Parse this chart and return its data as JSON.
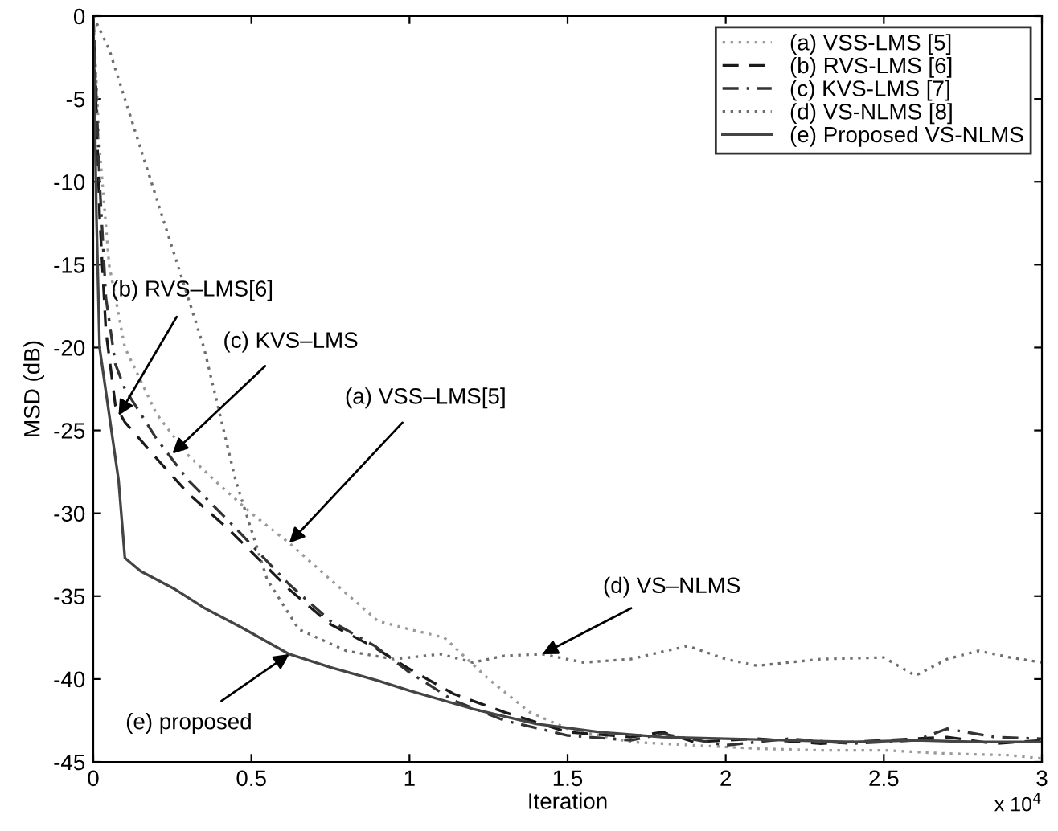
{
  "chart_data": {
    "type": "line",
    "xlabel": "Iteration",
    "ylabel": "MSD (dB)",
    "xlim": [
      0,
      3
    ],
    "ylim": [
      -45,
      0
    ],
    "xticks": [
      0,
      0.5,
      1,
      1.5,
      2,
      2.5,
      3
    ],
    "yticks": [
      -45,
      -40,
      -35,
      -30,
      -25,
      -20,
      -15,
      -10,
      -5,
      0
    ],
    "grid": false,
    "legend": "top right",
    "series": [
      {
        "name": "(a) VSS-LMS [5]",
        "color": "#9a9a9a",
        "line_style": "dotted",
        "x": [
          0,
          0.02,
          0.05,
          0.1,
          0.2,
          0.3,
          0.4,
          0.5,
          0.62,
          0.75,
          0.9,
          1.0,
          1.11,
          1.25,
          1.38,
          1.5,
          1.7,
          1.9,
          2.1,
          2.3,
          2.5,
          2.7,
          2.9,
          3.0
        ],
        "values": [
          0,
          -8,
          -15,
          -20,
          -24,
          -26.5,
          -28.3,
          -30,
          -31.8,
          -34,
          -36.5,
          -37,
          -37.5,
          -40,
          -42,
          -43,
          -43.8,
          -44,
          -44.2,
          -44.3,
          -44.3,
          -44.5,
          -44.6,
          -44.8
        ]
      },
      {
        "name": "(b) RVS-LMS [6]",
        "color": "#1a1a1a",
        "line_style": "dashed",
        "x": [
          0,
          0.02,
          0.04,
          0.07,
          0.1,
          0.21,
          0.3,
          0.43,
          0.52,
          0.62,
          0.75,
          0.89,
          1.0,
          1.14,
          1.3,
          1.5,
          1.7,
          1.8,
          1.9,
          2.1,
          2.3,
          2.5,
          2.7,
          2.85,
          3.0
        ],
        "values": [
          0,
          -12,
          -19,
          -23.5,
          -24.5,
          -26.9,
          -28.8,
          -31,
          -32.7,
          -34.6,
          -36.7,
          -38.1,
          -39.4,
          -40.9,
          -42,
          -43.2,
          -43.5,
          -43.2,
          -43.8,
          -43.6,
          -43.9,
          -43.7,
          -43.5,
          -43.9,
          -43.7
        ]
      },
      {
        "name": "(c) KVS-LMS [7]",
        "color": "#333333",
        "line_style": "dashdot",
        "x": [
          0,
          0.02,
          0.04,
          0.07,
          0.1,
          0.2,
          0.3,
          0.43,
          0.52,
          0.62,
          0.75,
          0.89,
          1.0,
          1.14,
          1.3,
          1.5,
          1.7,
          1.8,
          2.0,
          2.2,
          2.4,
          2.6,
          2.7,
          2.85,
          3.0
        ],
        "values": [
          0,
          -10,
          -17,
          -21,
          -22.5,
          -25.5,
          -28,
          -30.5,
          -32.3,
          -34.3,
          -36.5,
          -38,
          -39.6,
          -41.3,
          -42.5,
          -43.4,
          -43.7,
          -43.3,
          -44,
          -43.6,
          -43.9,
          -43.7,
          -43,
          -43.5,
          -43.6
        ]
      },
      {
        "name": "(d) VS-NLMS [8]",
        "color": "#6e6e6e",
        "line_style": "dotted",
        "x": [
          0,
          0.05,
          0.15,
          0.25,
          0.35,
          0.45,
          0.55,
          0.65,
          0.8,
          0.95,
          1.1,
          1.2,
          1.3,
          1.42,
          1.55,
          1.7,
          1.88,
          2.0,
          2.1,
          2.3,
          2.5,
          2.6,
          2.7,
          2.8,
          2.9,
          3.0
        ],
        "values": [
          0,
          -2,
          -8,
          -14,
          -20,
          -28,
          -34,
          -37,
          -38.3,
          -38.8,
          -38.5,
          -39,
          -38.6,
          -38.5,
          -39,
          -38.8,
          -38,
          -38.8,
          -39.2,
          -38.8,
          -38.7,
          -39.8,
          -38.8,
          -38.3,
          -38.7,
          -39
        ]
      },
      {
        "name": "(e) Proposed VS-NLMS",
        "color": "#444444",
        "line_style": "solid",
        "x": [
          0,
          0.01,
          0.02,
          0.05,
          0.08,
          0.1,
          0.15,
          0.26,
          0.35,
          0.47,
          0.62,
          0.75,
          0.9,
          1.0,
          1.2,
          1.4,
          1.6,
          1.8,
          2.0,
          2.2,
          2.4,
          2.6,
          2.8,
          3.0
        ],
        "values": [
          0,
          -12,
          -20,
          -24,
          -28,
          -32.7,
          -33.5,
          -34.6,
          -35.7,
          -36.9,
          -38.5,
          -39.3,
          -40.1,
          -40.7,
          -41.8,
          -42.7,
          -43.2,
          -43.5,
          -43.6,
          -43.7,
          -43.8,
          -43.7,
          -43.8,
          -43.8
        ]
      }
    ],
    "annotations": [
      {
        "text": "(b) RVS–LMS[6]",
        "x": 0.08,
        "y": -24.1
      },
      {
        "text": "(c) KVS–LMS",
        "x": 0.25,
        "y": -26.4
      },
      {
        "text": "(a) VSS–LMS[5]",
        "x": 0.62,
        "y": -31.8
      },
      {
        "text": "(d) VS–NLMS",
        "x": 1.42,
        "y": -38.5
      },
      {
        "text": "(e) proposed",
        "x": 0.62,
        "y": -38.5
      },
      "x 10$^{4}$"
    ]
  }
}
